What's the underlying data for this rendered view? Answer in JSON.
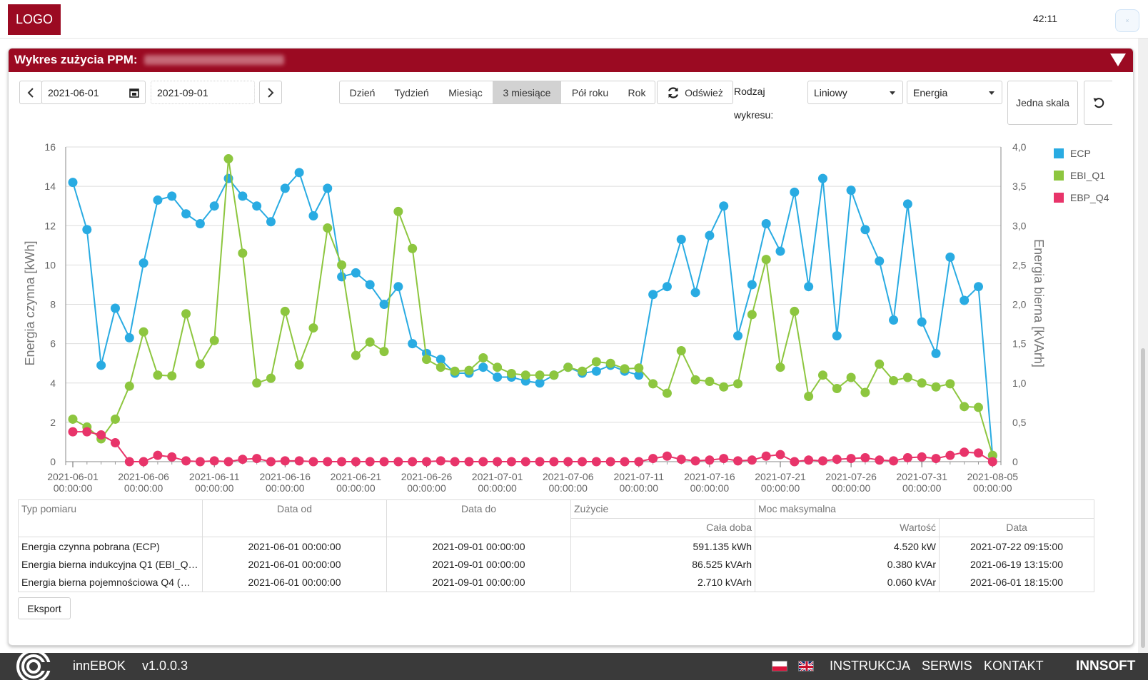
{
  "header": {
    "logo": "LOGO",
    "timer": "42:11"
  },
  "panel": {
    "title": "Wykres zużycia PPM:"
  },
  "toolbar": {
    "date_from": "2021-06-01",
    "date_to": "2021-09-01",
    "ranges": [
      "Dzień",
      "Tydzień",
      "Miesiąc",
      "3 miesiące",
      "Pół roku",
      "Rok"
    ],
    "active_range": "3 miesiące",
    "refresh_label": "Odśwież",
    "chart_kind_label_1": "Rodzaj",
    "chart_kind_label_2": "wykresu:",
    "chart_kind_value": "Liniowy",
    "measure_value": "Energia",
    "single_scale_label": "Jedna skala"
  },
  "chart_data": {
    "type": "line",
    "ylabel": "Energia czynna [kWh]",
    "y2label": "Energia bierna [kVArh]",
    "ylim": [
      0,
      16
    ],
    "y2lim": [
      0,
      4
    ],
    "yticks": [
      "0",
      "2",
      "4",
      "6",
      "8",
      "10",
      "12",
      "14",
      "16"
    ],
    "y2ticks": [
      "0",
      "0,5",
      "1,0",
      "1,5",
      "2,0",
      "2,5",
      "3,0",
      "3,5",
      "4,0"
    ],
    "xticks": [
      "2021-06-01",
      "2021-06-06",
      "2021-06-11",
      "2021-06-16",
      "2021-06-21",
      "2021-06-26",
      "2021-07-01",
      "2021-07-06",
      "2021-07-11",
      "2021-07-16",
      "2021-07-21",
      "2021-07-26",
      "2021-07-31",
      "2021-08-05"
    ],
    "xtick_time": "00:00:00",
    "x_start": "2021-06-01",
    "grid": true,
    "legend_position": "right",
    "series": [
      {
        "name": "ECP",
        "axis": "left",
        "color": "#29abe2",
        "values": [
          14.2,
          11.8,
          4.9,
          7.8,
          6.3,
          10.1,
          13.3,
          13.5,
          12.6,
          12.1,
          13.0,
          14.4,
          13.5,
          13.0,
          12.2,
          13.9,
          14.7,
          12.5,
          13.9,
          9.4,
          9.6,
          9.0,
          8.0,
          8.9,
          6.0,
          5.5,
          5.2,
          4.5,
          4.5,
          4.8,
          4.3,
          4.3,
          4.1,
          4.0,
          4.4,
          4.8,
          4.5,
          4.6,
          4.9,
          4.6,
          4.4,
          8.5,
          8.9,
          11.3,
          8.6,
          11.5,
          13.0,
          6.4,
          9.0,
          12.1,
          10.7,
          13.7,
          8.9,
          14.4,
          6.4,
          13.8,
          11.8,
          10.2,
          7.2,
          13.1,
          7.1,
          5.5,
          10.4,
          8.2,
          8.9,
          0.3
        ]
      },
      {
        "name": "EBI_Q1",
        "axis": "right",
        "color": "#8dc63f",
        "values": [
          0.54,
          0.44,
          0.29,
          0.54,
          0.96,
          1.65,
          1.1,
          1.09,
          1.88,
          1.24,
          1.54,
          3.85,
          2.65,
          1.0,
          1.06,
          1.91,
          1.23,
          1.7,
          2.97,
          2.5,
          1.35,
          1.52,
          1.4,
          3.18,
          2.71,
          1.3,
          1.2,
          1.15,
          1.16,
          1.32,
          1.2,
          1.12,
          1.1,
          1.1,
          1.1,
          1.2,
          1.15,
          1.27,
          1.25,
          1.18,
          1.19,
          0.99,
          0.87,
          1.41,
          1.04,
          1.02,
          0.95,
          0.99,
          1.87,
          2.57,
          1.2,
          1.91,
          0.83,
          1.1,
          0.93,
          1.07,
          0.88,
          1.24,
          1.03,
          1.07,
          1.0,
          0.95,
          0.99,
          0.7,
          0.69,
          0.08
        ]
      },
      {
        "name": "EBP_Q4",
        "axis": "right",
        "color": "#e8346a",
        "values": [
          0.38,
          0.38,
          0.34,
          0.24,
          0.0,
          0.0,
          0.08,
          0.06,
          0.01,
          0.0,
          0.01,
          0.0,
          0.03,
          0.04,
          0.0,
          0.01,
          0.01,
          0.0,
          0.0,
          0.0,
          0.0,
          0.0,
          0.0,
          0.0,
          0.0,
          0.0,
          0.01,
          0.0,
          0.0,
          0.0,
          0.0,
          0.0,
          0.0,
          0.0,
          0.0,
          0.0,
          0.0,
          0.0,
          0.0,
          0.0,
          0.0,
          0.04,
          0.07,
          0.03,
          0.01,
          0.02,
          0.04,
          0.01,
          0.02,
          0.07,
          0.09,
          0.0,
          0.02,
          0.01,
          0.03,
          0.04,
          0.05,
          0.02,
          0.01,
          0.05,
          0.06,
          0.04,
          0.08,
          0.12,
          0.11,
          0.0
        ]
      }
    ]
  },
  "table": {
    "headers": {
      "type": "Typ pomiaru",
      "from": "Data od",
      "to": "Data do",
      "usage": "Zużycie",
      "usage_sub": "Cała doba",
      "max": "Moc maksymalna",
      "max_value": "Wartość",
      "max_date": "Data"
    },
    "rows": [
      {
        "type": "Energia czynna pobrana (ECP)",
        "from": "2021-06-01 00:00:00",
        "to": "2021-09-01 00:00:00",
        "usage": "591.135 kWh",
        "max_value": "4.520 kW",
        "max_date": "2021-07-22 09:15:00"
      },
      {
        "type": "Energia bierna indukcyjna Q1 (EBI_Q…",
        "from": "2021-06-01 00:00:00",
        "to": "2021-09-01 00:00:00",
        "usage": "86.525 kVArh",
        "max_value": "0.380 kVAr",
        "max_date": "2021-06-19 13:15:00"
      },
      {
        "type": "Energia bierna pojemnościowa Q4 (…",
        "from": "2021-06-01 00:00:00",
        "to": "2021-09-01 00:00:00",
        "usage": "2.710 kVArh",
        "max_value": "0.060 kVAr",
        "max_date": "2021-06-01 18:15:00"
      }
    ],
    "export_label": "Eksport"
  },
  "footer": {
    "app_name": "innEBOK",
    "version": "v1.0.0.3",
    "links": [
      "INSTRUKCJA",
      "SERWIS",
      "KONTAKT"
    ],
    "vendor": "INNSOFT"
  },
  "icons": {
    "prev": "chevron-left-icon",
    "next": "chevron-right-icon",
    "calendar": "calendar-icon",
    "refresh": "refresh-icon",
    "undo": "undo-icon",
    "collapse": "triangle-down-icon"
  }
}
